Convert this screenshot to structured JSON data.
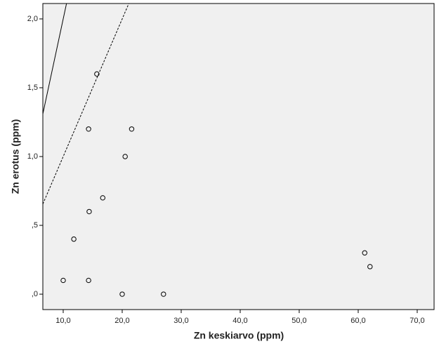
{
  "chart_data": {
    "type": "scatter",
    "x_label": "Zn keskiarvo (ppm)",
    "y_label": "Zn erotus (ppm)",
    "xlim": [
      6.55,
      72.86
    ],
    "ylim": [
      -0.112,
      2.112
    ],
    "xticks": [
      {
        "value": 10,
        "label": "10,0"
      },
      {
        "value": 20,
        "label": "20,0"
      },
      {
        "value": 30,
        "label": "30,0"
      },
      {
        "value": 40,
        "label": "40,0"
      },
      {
        "value": 50,
        "label": "50,0"
      },
      {
        "value": 60,
        "label": "60,0"
      },
      {
        "value": 70,
        "label": "70,0"
      }
    ],
    "yticks": [
      {
        "value": 0,
        "label": ",0"
      },
      {
        "value": 0.5,
        "label": ",5"
      },
      {
        "value": 1,
        "label": "1,0"
      },
      {
        "value": 1.5,
        "label": "1,5"
      },
      {
        "value": 2,
        "label": "2,0"
      }
    ],
    "x": [
      10.0,
      14.3,
      20.0,
      27.0,
      11.8,
      14.4,
      16.7,
      20.5,
      14.3,
      21.6,
      15.7,
      61.1,
      62.0
    ],
    "values": [
      0.1,
      0.1,
      0.0,
      0.0,
      0.4,
      0.6,
      0.7,
      1.0,
      1.2,
      1.2,
      1.6,
      0.3,
      0.2
    ],
    "color": "#000000",
    "background": "#f0f0f0",
    "reference_lines": [
      {
        "slope": 0.2,
        "intercept": 0,
        "dashed": false
      },
      {
        "slope": 0.1,
        "intercept": 0,
        "dashed": true
      }
    ]
  }
}
